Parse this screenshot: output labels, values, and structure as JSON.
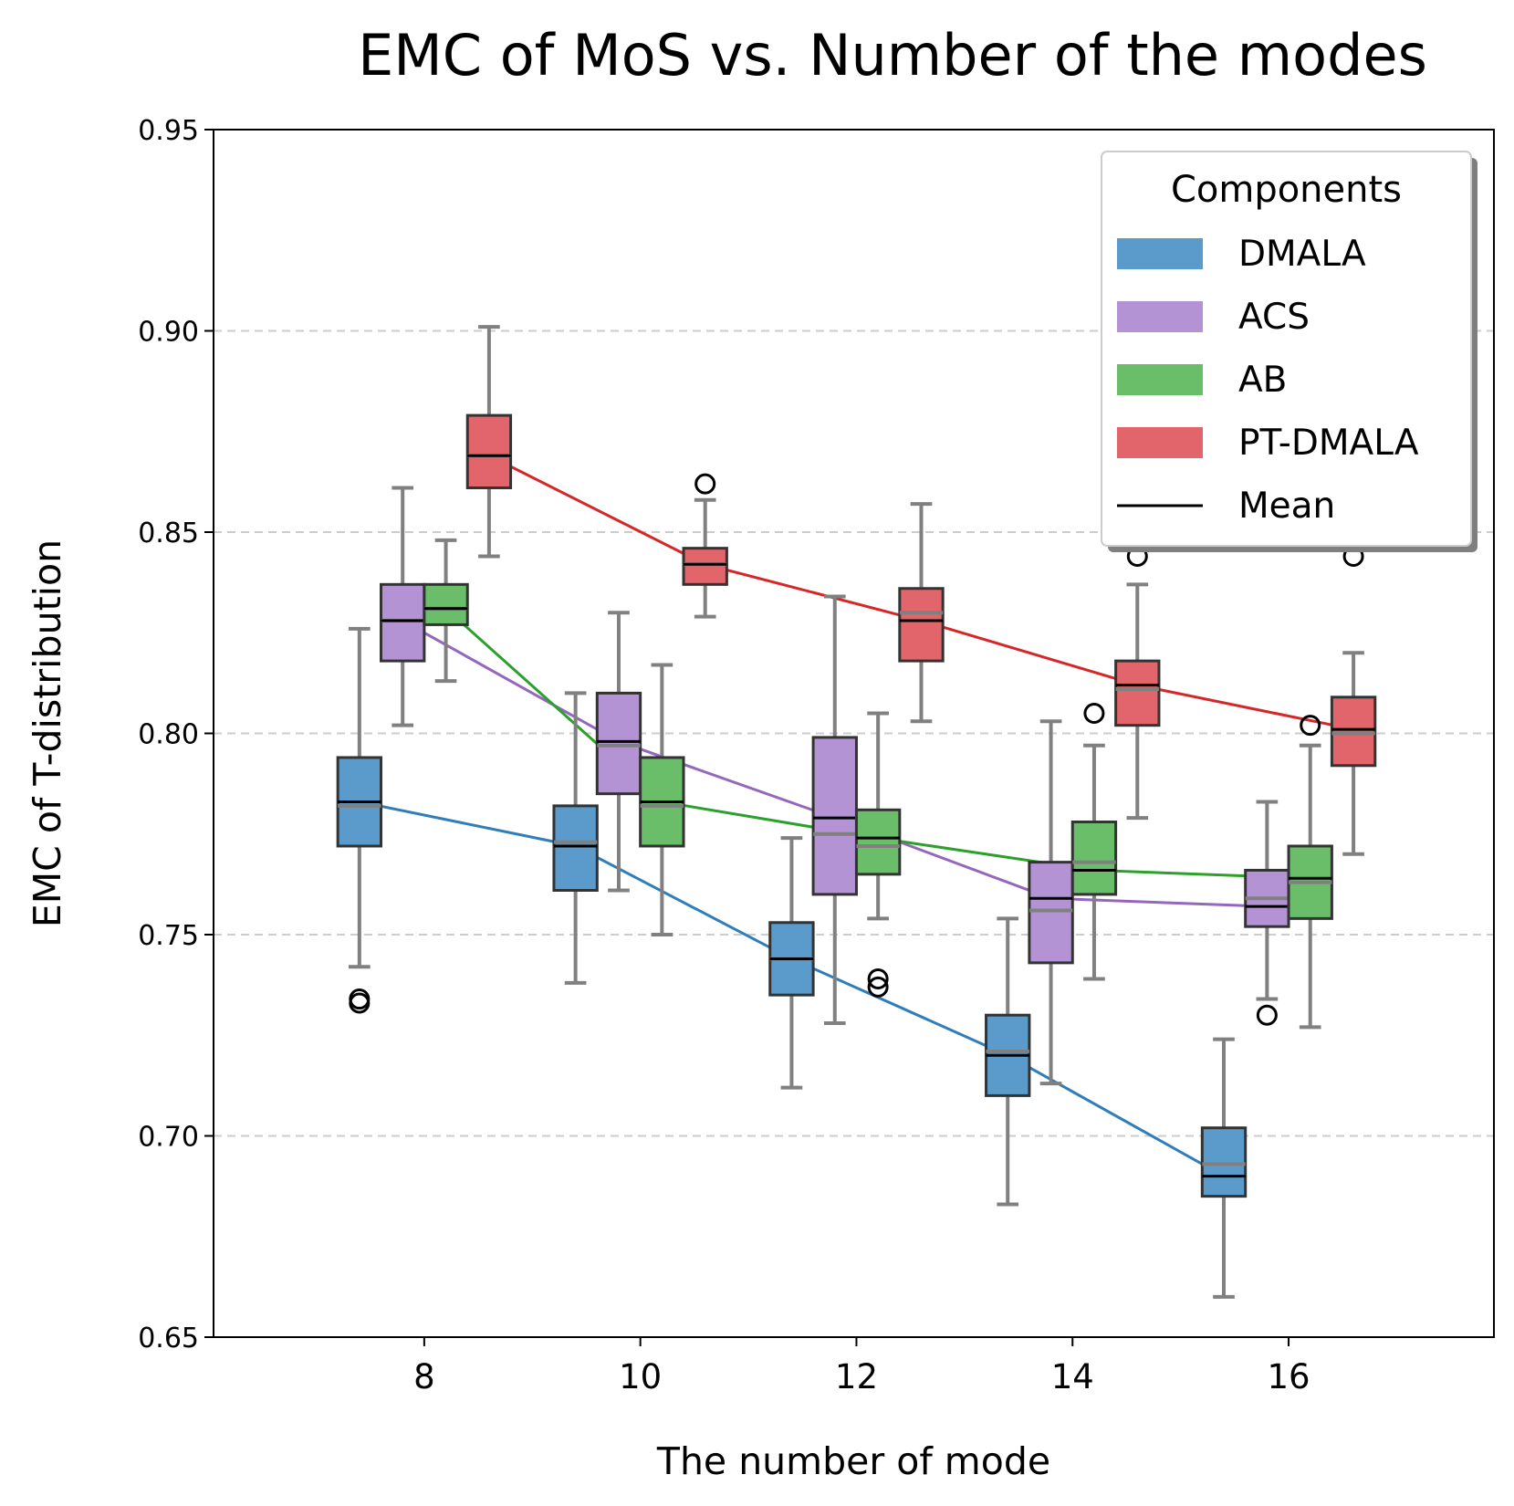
{
  "chart_data": {
    "type": "box",
    "title": "EMC of MoS vs. Number of the modes",
    "xlabel": "The number of mode",
    "ylabel": "EMC of T-distribution",
    "ylim": [
      0.65,
      0.95
    ],
    "xlim": [
      6.05,
      17.9
    ],
    "yticks": [
      "0.65",
      "0.70",
      "0.75",
      "0.80",
      "0.85",
      "0.90",
      "0.95"
    ],
    "xticks": [
      "8",
      "10",
      "12",
      "14",
      "16"
    ],
    "grid": "horizontal dashed",
    "legend": {
      "title": "Components",
      "position": "top-right",
      "mean_label": "Mean"
    },
    "series": [
      {
        "name": "DMALA",
        "color": "#5b9bcc",
        "line_color": "#2f7ebc",
        "offset": -0.6,
        "boxes": [
          {
            "x": 8,
            "q1": 0.772,
            "median": 0.782,
            "q3": 0.794,
            "wlo": 0.742,
            "whi": 0.826,
            "outliers": [
              0.733,
              0.734
            ],
            "mean": 0.783
          },
          {
            "x": 10,
            "q1": 0.761,
            "median": 0.773,
            "q3": 0.782,
            "wlo": 0.738,
            "whi": 0.81,
            "outliers": [],
            "mean": 0.772
          },
          {
            "x": 12,
            "q1": 0.735,
            "median": 0.744,
            "q3": 0.753,
            "wlo": 0.712,
            "whi": 0.774,
            "outliers": [],
            "mean": 0.744
          },
          {
            "x": 14,
            "q1": 0.71,
            "median": 0.721,
            "q3": 0.73,
            "wlo": 0.683,
            "whi": 0.754,
            "outliers": [],
            "mean": 0.72
          },
          {
            "x": 16,
            "q1": 0.685,
            "median": 0.693,
            "q3": 0.702,
            "wlo": 0.66,
            "whi": 0.724,
            "outliers": [],
            "mean": 0.69
          }
        ]
      },
      {
        "name": "ACS",
        "color": "#b393d3",
        "line_color": "#9467bd",
        "offset": -0.2,
        "boxes": [
          {
            "x": 8,
            "q1": 0.818,
            "median": 0.828,
            "q3": 0.837,
            "wlo": 0.802,
            "whi": 0.861,
            "outliers": [],
            "mean": 0.828
          },
          {
            "x": 10,
            "q1": 0.785,
            "median": 0.797,
            "q3": 0.81,
            "wlo": 0.761,
            "whi": 0.83,
            "outliers": [],
            "mean": 0.798
          },
          {
            "x": 12,
            "q1": 0.76,
            "median": 0.775,
            "q3": 0.799,
            "wlo": 0.728,
            "whi": 0.834,
            "outliers": [],
            "mean": 0.779
          },
          {
            "x": 14,
            "q1": 0.743,
            "median": 0.756,
            "q3": 0.768,
            "wlo": 0.713,
            "whi": 0.803,
            "outliers": [],
            "mean": 0.759
          },
          {
            "x": 16,
            "q1": 0.752,
            "median": 0.759,
            "q3": 0.766,
            "wlo": 0.734,
            "whi": 0.783,
            "outliers": [
              0.73
            ],
            "mean": 0.757
          }
        ]
      },
      {
        "name": "AB",
        "color": "#6abd69",
        "line_color": "#2ca02c",
        "offset": 0.2,
        "boxes": [
          {
            "x": 8,
            "q1": 0.827,
            "median": 0.831,
            "q3": 0.837,
            "wlo": 0.813,
            "whi": 0.848,
            "outliers": [],
            "mean": 0.831
          },
          {
            "x": 10,
            "q1": 0.772,
            "median": 0.782,
            "q3": 0.794,
            "wlo": 0.75,
            "whi": 0.817,
            "outliers": [],
            "mean": 0.783
          },
          {
            "x": 12,
            "q1": 0.765,
            "median": 0.772,
            "q3": 0.781,
            "wlo": 0.754,
            "whi": 0.805,
            "outliers": [
              0.737,
              0.739
            ],
            "mean": 0.774
          },
          {
            "x": 14,
            "q1": 0.76,
            "median": 0.768,
            "q3": 0.778,
            "wlo": 0.739,
            "whi": 0.797,
            "outliers": [
              0.805
            ],
            "mean": 0.766
          },
          {
            "x": 16,
            "q1": 0.754,
            "median": 0.763,
            "q3": 0.772,
            "wlo": 0.727,
            "whi": 0.797,
            "outliers": [
              0.802
            ],
            "mean": 0.764
          }
        ]
      },
      {
        "name": "PT-DMALA",
        "color": "#e1656a",
        "line_color": "#d62728",
        "offset": 0.6,
        "boxes": [
          {
            "x": 8,
            "q1": 0.861,
            "median": 0.869,
            "q3": 0.879,
            "wlo": 0.844,
            "whi": 0.901,
            "outliers": [],
            "mean": 0.869
          },
          {
            "x": 10,
            "q1": 0.837,
            "median": 0.842,
            "q3": 0.846,
            "wlo": 0.829,
            "whi": 0.858,
            "outliers": [
              0.862
            ],
            "mean": 0.842
          },
          {
            "x": 12,
            "q1": 0.818,
            "median": 0.83,
            "q3": 0.836,
            "wlo": 0.803,
            "whi": 0.857,
            "outliers": [],
            "mean": 0.828
          },
          {
            "x": 14,
            "q1": 0.802,
            "median": 0.811,
            "q3": 0.818,
            "wlo": 0.779,
            "whi": 0.837,
            "outliers": [
              0.844
            ],
            "mean": 0.812
          },
          {
            "x": 16,
            "q1": 0.792,
            "median": 0.8,
            "q3": 0.809,
            "wlo": 0.77,
            "whi": 0.82,
            "outliers": [
              0.844
            ],
            "mean": 0.801
          }
        ]
      }
    ]
  }
}
